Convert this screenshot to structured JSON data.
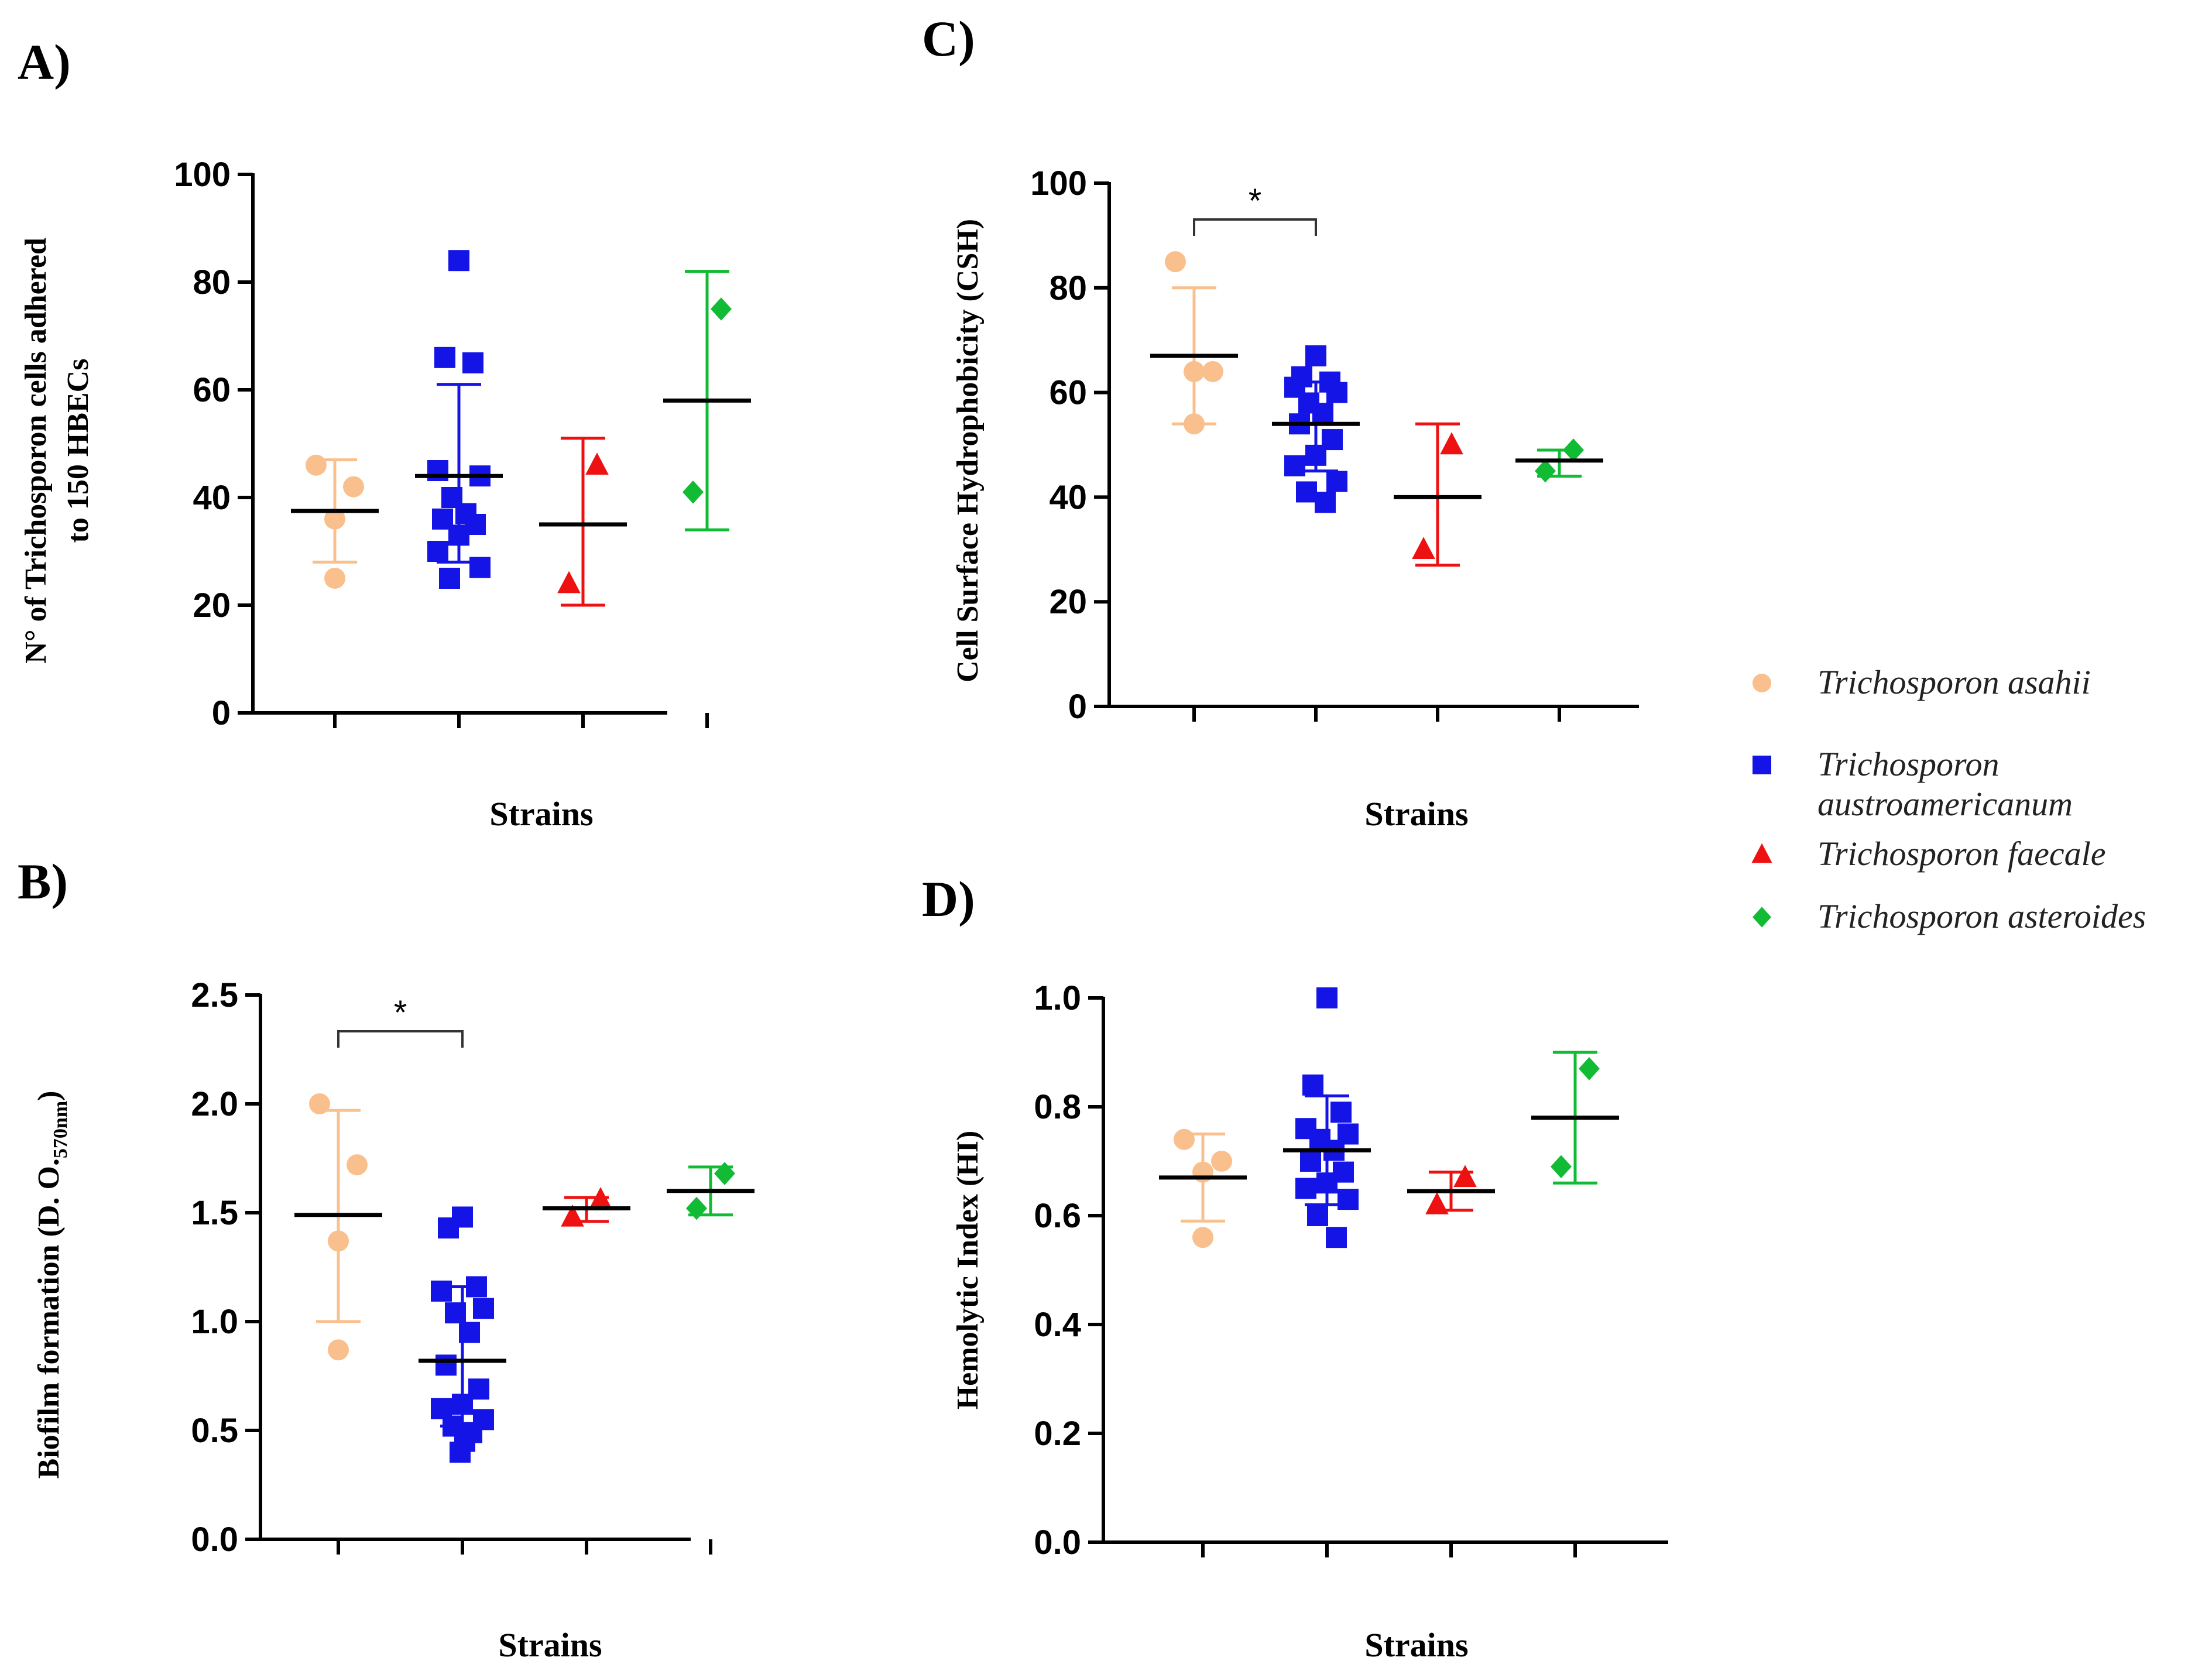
{
  "colors": {
    "asahii": "#F9C08E",
    "austroamericanum": "#1414E6",
    "faecale": "#EE1111",
    "asteroides": "#11BB33"
  },
  "legend": [
    {
      "key": "asahii",
      "lines": [
        "Trichosporon asahii"
      ],
      "marker": "circle"
    },
    {
      "key": "austroamericanum",
      "lines": [
        "Trichosporon",
        "austroamericanum"
      ],
      "marker": "square"
    },
    {
      "key": "faecale",
      "lines": [
        "Trichosporon faecale"
      ],
      "marker": "triangle"
    },
    {
      "key": "asteroides",
      "lines": [
        "Trichosporon asteroides"
      ],
      "marker": "diamond"
    }
  ],
  "chart_data": [
    {
      "panel": "A)",
      "type": "scatter",
      "xlabel": "Strains",
      "ylabel_lines": [
        "N° of Trichosporon cells adhered",
        "to 150 HBECs"
      ],
      "ylim": [
        0,
        100
      ],
      "yticks": [
        "0",
        "20",
        "40",
        "60",
        "80",
        "100"
      ],
      "groups": [
        {
          "key": "asahii",
          "points": [
            46,
            42,
            36,
            25
          ],
          "mean": 37.5,
          "sd_low": 28,
          "sd_high": 47
        },
        {
          "key": "austroamericanum",
          "points": [
            84,
            66,
            65,
            45,
            44,
            40,
            37,
            36,
            35,
            33,
            30,
            27,
            25
          ],
          "mean": 44,
          "sd_low": 28,
          "sd_high": 61
        },
        {
          "key": "faecale",
          "points": [
            46,
            24
          ],
          "mean": 35,
          "sd_low": 20,
          "sd_high": 51
        },
        {
          "key": "asteroides",
          "points": [
            75,
            41
          ],
          "mean": 58,
          "sd_low": 34,
          "sd_high": 82
        }
      ],
      "significance": []
    },
    {
      "panel": "C)",
      "type": "scatter",
      "xlabel": "Strains",
      "ylabel_lines": [
        "Cell Surface Hydrophobicity (CSH)"
      ],
      "ylim": [
        0,
        100
      ],
      "yticks": [
        "0",
        "20",
        "40",
        "60",
        "80",
        "100"
      ],
      "groups": [
        {
          "key": "asahii",
          "points": [
            85,
            64,
            64,
            54
          ],
          "mean": 67,
          "sd_low": 54,
          "sd_high": 80
        },
        {
          "key": "austroamericanum",
          "points": [
            67,
            63,
            62,
            61,
            60,
            58,
            56,
            54,
            51,
            48,
            46,
            43,
            41,
            39
          ],
          "mean": 54,
          "sd_low": 45,
          "sd_high": 62
        },
        {
          "key": "faecale",
          "points": [
            50,
            30
          ],
          "mean": 40,
          "sd_low": 27,
          "sd_high": 54
        },
        {
          "key": "asteroides",
          "points": [
            49,
            45
          ],
          "mean": 47,
          "sd_low": 44,
          "sd_high": 49
        }
      ],
      "significance": [
        {
          "from": 0,
          "to": 1,
          "label": "*"
        }
      ]
    },
    {
      "panel": "B)",
      "type": "scatter",
      "xlabel": "Strains",
      "ylabel_main": "Biofilm formation (D. O.",
      "ylabel_sub": "570nm",
      "ylabel_end": ")",
      "ylim": [
        0,
        2.5
      ],
      "yticks": [
        "0.0",
        "0.5",
        "1.0",
        "1.5",
        "2.0",
        "2.5"
      ],
      "groups": [
        {
          "key": "asahii",
          "points": [
            2.0,
            1.72,
            1.37,
            0.87
          ],
          "mean": 1.49,
          "sd_low": 1.0,
          "sd_high": 1.97
        },
        {
          "key": "austroamericanum",
          "points": [
            1.48,
            1.43,
            1.16,
            1.14,
            1.06,
            1.04,
            0.95,
            0.8,
            0.69,
            0.62,
            0.6,
            0.55,
            0.52,
            0.49,
            0.45,
            0.4
          ],
          "mean": 0.82,
          "sd_low": 0.52,
          "sd_high": 1.16
        },
        {
          "key": "faecale",
          "points": [
            1.56,
            1.48
          ],
          "mean": 1.52,
          "sd_low": 1.46,
          "sd_high": 1.57
        },
        {
          "key": "asteroides",
          "points": [
            1.68,
            1.52
          ],
          "mean": 1.6,
          "sd_low": 1.49,
          "sd_high": 1.71
        }
      ],
      "significance": [
        {
          "from": 0,
          "to": 1,
          "label": "*"
        }
      ]
    },
    {
      "panel": "D)",
      "type": "scatter",
      "xlabel": "Strains",
      "ylabel_lines": [
        "Hemolytic Index (HI)"
      ],
      "ylim": [
        0,
        1.0
      ],
      "yticks": [
        "0.0",
        "0.2",
        "0.4",
        "0.6",
        "0.8",
        "1.0"
      ],
      "groups": [
        {
          "key": "asahii",
          "points": [
            0.74,
            0.7,
            0.68,
            0.56
          ],
          "mean": 0.67,
          "sd_low": 0.59,
          "sd_high": 0.75
        },
        {
          "key": "austroamericanum",
          "points": [
            1.0,
            0.84,
            0.79,
            0.76,
            0.75,
            0.74,
            0.72,
            0.7,
            0.68,
            0.66,
            0.65,
            0.63,
            0.6,
            0.56
          ],
          "mean": 0.72,
          "sd_low": 0.62,
          "sd_high": 0.82
        },
        {
          "key": "faecale",
          "points": [
            0.67,
            0.62
          ],
          "mean": 0.645,
          "sd_low": 0.61,
          "sd_high": 0.68
        },
        {
          "key": "asteroides",
          "points": [
            0.87,
            0.69
          ],
          "mean": 0.78,
          "sd_low": 0.66,
          "sd_high": 0.9
        }
      ],
      "significance": []
    }
  ]
}
